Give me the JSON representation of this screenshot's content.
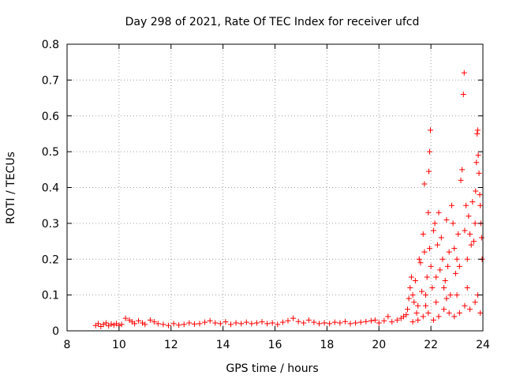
{
  "chart_data": {
    "type": "scatter",
    "title": "Day 298 of 2021, Rate Of TEC Index for receiver ufcd",
    "xlabel": "GPS time / hours",
    "ylabel": "ROTI / TECUs",
    "xlim": [
      8,
      24
    ],
    "ylim": [
      0,
      0.8
    ],
    "xticks": [
      8,
      10,
      12,
      14,
      16,
      18,
      20,
      22,
      24
    ],
    "xtick_labels": [
      "8",
      "10",
      "12",
      "14",
      "16",
      "18",
      "20",
      "22",
      "24"
    ],
    "yticks": [
      0,
      0.1,
      0.2,
      0.3,
      0.4,
      0.5,
      0.6,
      0.7,
      0.8
    ],
    "ytick_labels": [
      "0",
      "0.1",
      "0.2",
      "0.3",
      "0.4",
      "0.5",
      "0.6",
      "0.7",
      "0.8"
    ],
    "grid": true,
    "marker": "+",
    "color": "#ff0000",
    "series": [
      {
        "name": "ROTI",
        "points": [
          [
            9.1,
            0.015
          ],
          [
            9.2,
            0.02
          ],
          [
            9.3,
            0.012
          ],
          [
            9.4,
            0.018
          ],
          [
            9.5,
            0.022
          ],
          [
            9.6,
            0.014
          ],
          [
            9.7,
            0.019
          ],
          [
            9.8,
            0.016
          ],
          [
            9.9,
            0.02
          ],
          [
            10.0,
            0.015
          ],
          [
            10.1,
            0.018
          ],
          [
            10.25,
            0.035
          ],
          [
            10.4,
            0.03
          ],
          [
            10.5,
            0.025
          ],
          [
            10.6,
            0.02
          ],
          [
            10.75,
            0.028
          ],
          [
            10.9,
            0.022
          ],
          [
            11.0,
            0.018
          ],
          [
            11.2,
            0.03
          ],
          [
            11.35,
            0.025
          ],
          [
            11.5,
            0.02
          ],
          [
            11.7,
            0.018
          ],
          [
            11.9,
            0.015
          ],
          [
            12.1,
            0.02
          ],
          [
            12.3,
            0.016
          ],
          [
            12.5,
            0.018
          ],
          [
            12.7,
            0.022
          ],
          [
            12.9,
            0.019
          ],
          [
            13.1,
            0.02
          ],
          [
            13.3,
            0.024
          ],
          [
            13.5,
            0.028
          ],
          [
            13.7,
            0.022
          ],
          [
            13.9,
            0.02
          ],
          [
            14.1,
            0.025
          ],
          [
            14.3,
            0.018
          ],
          [
            14.5,
            0.022
          ],
          [
            14.7,
            0.02
          ],
          [
            14.9,
            0.024
          ],
          [
            15.1,
            0.02
          ],
          [
            15.3,
            0.022
          ],
          [
            15.5,
            0.025
          ],
          [
            15.7,
            0.02
          ],
          [
            15.9,
            0.022
          ],
          [
            16.1,
            0.018
          ],
          [
            16.3,
            0.024
          ],
          [
            16.5,
            0.028
          ],
          [
            16.7,
            0.035
          ],
          [
            16.9,
            0.026
          ],
          [
            17.1,
            0.022
          ],
          [
            17.3,
            0.03
          ],
          [
            17.5,
            0.024
          ],
          [
            17.7,
            0.02
          ],
          [
            17.9,
            0.022
          ],
          [
            18.1,
            0.02
          ],
          [
            18.3,
            0.024
          ],
          [
            18.5,
            0.022
          ],
          [
            18.7,
            0.026
          ],
          [
            18.9,
            0.02
          ],
          [
            19.1,
            0.022
          ],
          [
            19.3,
            0.024
          ],
          [
            19.5,
            0.026
          ],
          [
            19.7,
            0.028
          ],
          [
            19.85,
            0.03
          ],
          [
            20.0,
            0.022
          ],
          [
            20.2,
            0.028
          ],
          [
            20.35,
            0.04
          ],
          [
            20.5,
            0.025
          ],
          [
            20.7,
            0.03
          ],
          [
            20.85,
            0.035
          ],
          [
            20.95,
            0.04
          ],
          [
            21.05,
            0.045
          ],
          [
            21.1,
            0.06
          ],
          [
            21.15,
            0.09
          ],
          [
            21.2,
            0.12
          ],
          [
            21.25,
            0.15
          ],
          [
            21.3,
            0.1
          ],
          [
            21.35,
            0.08
          ],
          [
            21.4,
            0.14
          ],
          [
            21.45,
            0.05
          ],
          [
            21.5,
            0.07
          ],
          [
            21.55,
            0.2
          ],
          [
            21.6,
            0.19
          ],
          [
            21.65,
            0.11
          ],
          [
            21.7,
            0.27
          ],
          [
            21.75,
            0.22
          ],
          [
            21.8,
            0.1
          ],
          [
            21.85,
            0.15
          ],
          [
            21.9,
            0.33
          ],
          [
            21.95,
            0.23
          ],
          [
            22.0,
            0.18
          ],
          [
            21.95,
            0.5
          ],
          [
            21.98,
            0.56
          ],
          [
            21.92,
            0.445
          ],
          [
            21.75,
            0.41
          ],
          [
            22.05,
            0.12
          ],
          [
            22.1,
            0.28
          ],
          [
            22.15,
            0.3
          ],
          [
            22.2,
            0.15
          ],
          [
            22.25,
            0.24
          ],
          [
            22.3,
            0.33
          ],
          [
            22.35,
            0.17
          ],
          [
            22.4,
            0.26
          ],
          [
            22.45,
            0.2
          ],
          [
            22.5,
            0.12
          ],
          [
            22.55,
            0.14
          ],
          [
            22.6,
            0.31
          ],
          [
            22.65,
            0.18
          ],
          [
            22.7,
            0.22
          ],
          [
            22.75,
            0.1
          ],
          [
            22.8,
            0.35
          ],
          [
            22.85,
            0.3
          ],
          [
            22.9,
            0.23
          ],
          [
            22.95,
            0.16
          ],
          [
            23.0,
            0.2
          ],
          [
            23.05,
            0.27
          ],
          [
            23.1,
            0.18
          ],
          [
            23.15,
            0.42
          ],
          [
            23.2,
            0.45
          ],
          [
            23.25,
            0.66
          ],
          [
            23.28,
            0.72
          ],
          [
            23.3,
            0.28
          ],
          [
            23.35,
            0.35
          ],
          [
            23.4,
            0.2
          ],
          [
            23.45,
            0.32
          ],
          [
            23.5,
            0.27
          ],
          [
            23.55,
            0.24
          ],
          [
            23.6,
            0.36
          ],
          [
            23.65,
            0.25
          ],
          [
            23.7,
            0.3
          ],
          [
            23.72,
            0.39
          ],
          [
            23.75,
            0.47
          ],
          [
            23.78,
            0.55
          ],
          [
            23.8,
            0.56
          ],
          [
            23.82,
            0.49
          ],
          [
            23.85,
            0.44
          ],
          [
            23.88,
            0.38
          ],
          [
            23.9,
            0.35
          ],
          [
            23.92,
            0.3
          ],
          [
            23.95,
            0.26
          ],
          [
            23.97,
            0.2
          ],
          [
            21.3,
            0.025
          ],
          [
            21.5,
            0.03
          ],
          [
            21.7,
            0.04
          ],
          [
            21.9,
            0.05
          ],
          [
            22.1,
            0.03
          ],
          [
            22.3,
            0.04
          ],
          [
            22.5,
            0.06
          ],
          [
            22.7,
            0.05
          ],
          [
            22.9,
            0.04
          ],
          [
            23.1,
            0.05
          ],
          [
            23.3,
            0.07
          ],
          [
            23.5,
            0.06
          ],
          [
            23.7,
            0.08
          ],
          [
            23.9,
            0.05
          ],
          [
            22.2,
            0.08
          ],
          [
            22.6,
            0.09
          ],
          [
            23.0,
            0.1
          ],
          [
            23.4,
            0.12
          ],
          [
            23.8,
            0.1
          ],
          [
            21.8,
            0.07
          ]
        ]
      }
    ]
  }
}
